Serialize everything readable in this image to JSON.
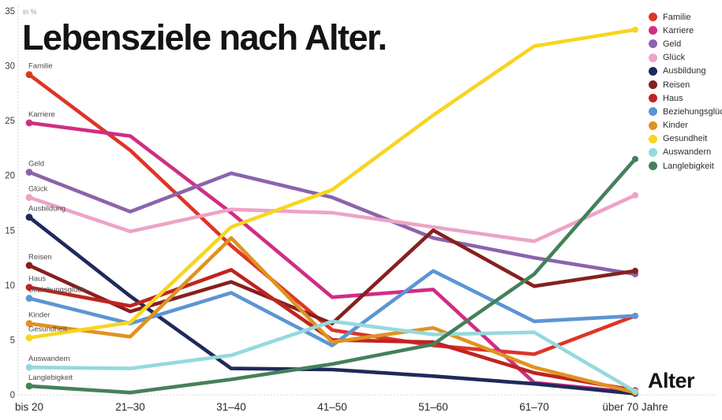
{
  "title": "Lebensziele nach Alter.",
  "axis_note": "in %",
  "x_axis_label": "Alter",
  "chart_data": {
    "type": "line",
    "title": "Lebensziele nach Alter.",
    "ylabel": "in %",
    "xlabel": "Alter",
    "ylim": [
      0,
      35
    ],
    "yticks": [
      0,
      5,
      10,
      15,
      20,
      25,
      30,
      35
    ],
    "grid": false,
    "legend_position": "top-right",
    "categories": [
      "bis 20",
      "21–30",
      "31–40",
      "41–50",
      "51–60",
      "61–70",
      "über 70 Jahre"
    ],
    "series": [
      {
        "name": "Familie",
        "color": "#dd3526",
        "values": [
          29.2,
          22.3,
          13.6,
          5.9,
          4.5,
          3.7,
          7.2
        ]
      },
      {
        "name": "Karriere",
        "color": "#d02d84",
        "values": [
          24.8,
          23.6,
          16.6,
          8.9,
          9.6,
          1.1,
          0.2
        ]
      },
      {
        "name": "Geld",
        "color": "#8a64ab",
        "values": [
          20.3,
          16.7,
          20.2,
          18.0,
          14.3,
          12.5,
          11.0
        ]
      },
      {
        "name": "Glück",
        "color": "#eda3c7",
        "values": [
          18.0,
          14.9,
          16.9,
          16.6,
          15.3,
          14.0,
          18.2
        ]
      },
      {
        "name": "Ausbildung",
        "color": "#20295c",
        "values": [
          16.2,
          9.0,
          2.4,
          2.3,
          1.7,
          1.0,
          0.1
        ]
      },
      {
        "name": "Reisen",
        "color": "#86201e",
        "values": [
          11.8,
          7.6,
          10.3,
          6.5,
          15.0,
          9.9,
          11.3
        ]
      },
      {
        "name": "Haus",
        "color": "#bf2420",
        "values": [
          9.8,
          8.1,
          11.4,
          5.0,
          4.8,
          2.0,
          0.4
        ]
      },
      {
        "name": "Beziehungsglück",
        "color": "#5d94d3",
        "values": [
          8.8,
          6.5,
          9.3,
          4.5,
          11.3,
          6.7,
          7.2
        ]
      },
      {
        "name": "Kinder",
        "color": "#e09220",
        "values": [
          6.5,
          5.3,
          14.3,
          4.8,
          6.1,
          2.5,
          0.2
        ]
      },
      {
        "name": "Gesundheit",
        "color": "#f7d520",
        "values": [
          5.2,
          6.6,
          15.3,
          18.7,
          25.5,
          31.8,
          33.3
        ]
      },
      {
        "name": "Auswandern",
        "color": "#94d9de",
        "values": [
          2.5,
          2.4,
          3.6,
          6.7,
          5.5,
          5.7,
          0.3
        ]
      },
      {
        "name": "Langlebigkeit",
        "color": "#44815a",
        "values": [
          0.8,
          0.2,
          1.4,
          2.8,
          4.6,
          11.0,
          21.5
        ]
      }
    ]
  }
}
